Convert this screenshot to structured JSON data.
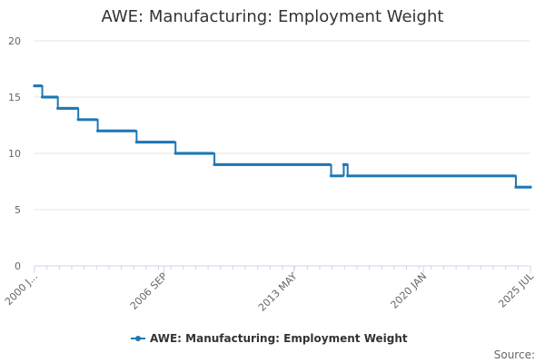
{
  "chart_data": {
    "type": "line",
    "title": "AWE: Manufacturing: Employment Weight",
    "xlabel": "",
    "ylabel": "",
    "ylim": [
      0,
      20
    ],
    "yticks": [
      0,
      5,
      10,
      15,
      20
    ],
    "xtick_labels": [
      "2000 J...",
      "2006 SEP",
      "2013 MAY",
      "2020 JAN",
      "2025 JUL"
    ],
    "xtick_positions": [
      2000.0,
      2006.667,
      2013.333,
      2020.0,
      2025.5
    ],
    "xlim": [
      2000.0,
      2025.5
    ],
    "grid": true,
    "legend_position": "bottom",
    "source_label": "Source:",
    "series": [
      {
        "name": "AWE: Manufacturing: Employment Weight",
        "color": "#1f77b4",
        "steps": [
          {
            "from": 2000.0,
            "to": 2000.4,
            "y": 16
          },
          {
            "from": 2000.4,
            "to": 2001.2,
            "y": 15
          },
          {
            "from": 2001.2,
            "to": 2002.25,
            "y": 14
          },
          {
            "from": 2002.25,
            "to": 2003.25,
            "y": 13
          },
          {
            "from": 2003.25,
            "to": 2005.25,
            "y": 12
          },
          {
            "from": 2005.25,
            "to": 2007.25,
            "y": 11
          },
          {
            "from": 2007.25,
            "to": 2009.25,
            "y": 10
          },
          {
            "from": 2009.25,
            "to": 2015.25,
            "y": 9
          },
          {
            "from": 2015.25,
            "to": 2015.9,
            "y": 8
          },
          {
            "from": 2015.9,
            "to": 2016.1,
            "y": 9
          },
          {
            "from": 2016.1,
            "to": 2024.75,
            "y": 8
          },
          {
            "from": 2024.75,
            "to": 2025.5,
            "y": 7
          }
        ]
      }
    ]
  }
}
